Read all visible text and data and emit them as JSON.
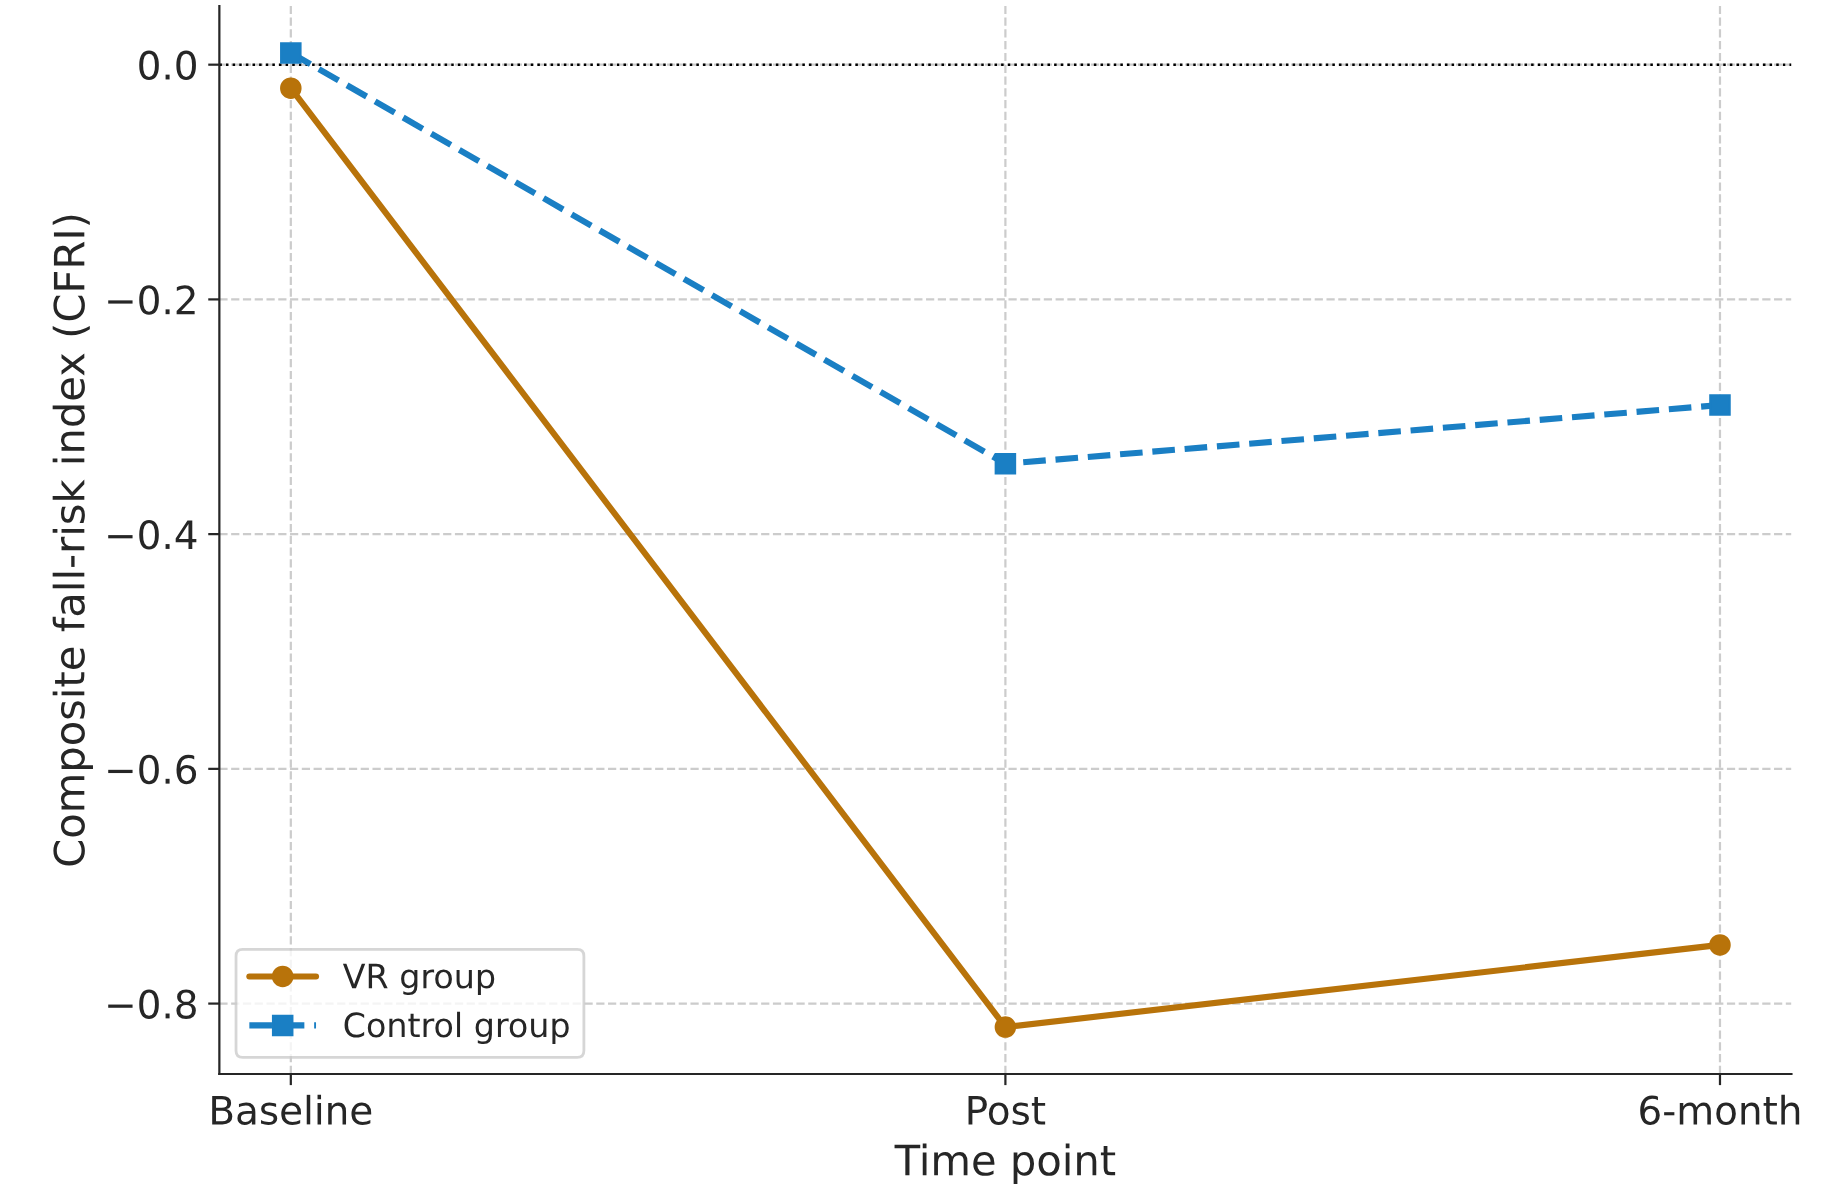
{
  "chart_data": {
    "type": "line",
    "xlabel": "Time point",
    "ylabel": "Composite fall-risk index (CFRI)",
    "categories": [
      "Baseline",
      "Post",
      "6-month"
    ],
    "series": [
      {
        "name": "VR group",
        "color": "#b8730a",
        "values": [
          -0.02,
          -0.82,
          -0.75
        ],
        "marker": "circle",
        "line_style": "solid"
      },
      {
        "name": "Control group",
        "color": "#1a7fc4",
        "values": [
          0.01,
          -0.34,
          -0.29
        ],
        "marker": "square",
        "line_style": "dashed"
      }
    ],
    "ylim": [
      -0.86,
      0.05
    ],
    "yticks": [
      {
        "value": 0.0,
        "label": "0.0"
      },
      {
        "value": -0.2,
        "label": "−0.2"
      },
      {
        "value": -0.4,
        "label": "−0.4"
      },
      {
        "value": -0.6,
        "label": "−0.6"
      },
      {
        "value": -0.8,
        "label": "−0.8"
      }
    ],
    "ref_lines": [
      {
        "axis": "y",
        "value": 0,
        "color": "#000000",
        "line_style": "dotted"
      }
    ],
    "grid": true,
    "legend": "bottom left"
  }
}
